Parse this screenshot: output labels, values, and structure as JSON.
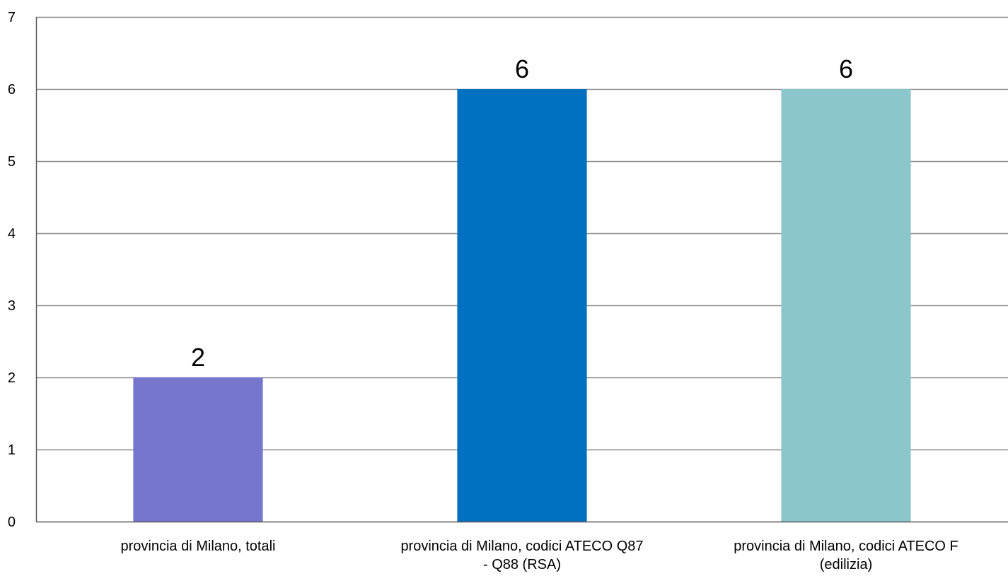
{
  "chart_data": {
    "type": "bar",
    "categories": [
      [
        "provincia di Milano, totali"
      ],
      [
        "provincia di Milano, codici ATECO Q87",
        "- Q88 (RSA)"
      ],
      [
        "provincia di Milano, codici ATECO F",
        "(edilizia)"
      ]
    ],
    "values": [
      2,
      6,
      6
    ],
    "data_labels": [
      "2",
      "6",
      "6"
    ],
    "bar_colors": [
      "#7676ce",
      "#0070c0",
      "#8cc6cd"
    ],
    "ylim": [
      0,
      7
    ],
    "yticks": [
      0,
      1,
      2,
      3,
      4,
      5,
      6,
      7
    ],
    "ytick_labels": [
      "0",
      "1",
      "2",
      "3",
      "4",
      "5",
      "6",
      "7"
    ],
    "grid": true,
    "legend": "none",
    "title": "",
    "xlabel": "",
    "ylabel": ""
  },
  "colors": {
    "grid": "#8c8c8c",
    "axis": "#595959",
    "text": "#000000"
  }
}
